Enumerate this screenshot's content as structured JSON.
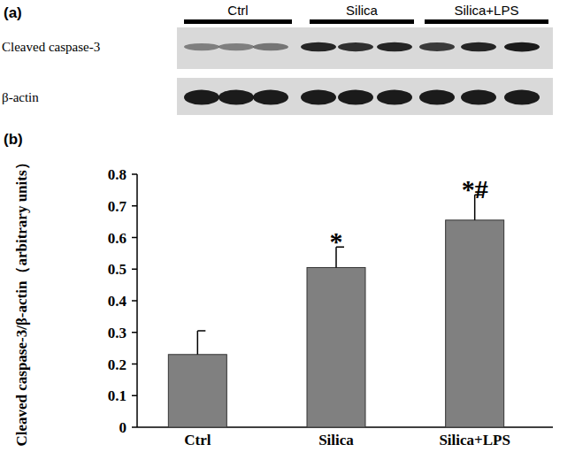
{
  "panel_a": {
    "panel_label": "(a)",
    "groups": [
      "Ctrl",
      "Silica",
      "Silica+LPS"
    ],
    "rows": [
      "Cleaved caspase-3",
      "β-actin"
    ]
  },
  "chart_data": {
    "type": "bar",
    "panel_label": "(b)",
    "y_label": "Cleaved caspase-3/β-actin（arbitrary units）",
    "categories": [
      "Ctrl",
      "Silica",
      "Silica+LPS"
    ],
    "values": [
      0.23,
      0.505,
      0.655
    ],
    "errors": [
      0.075,
      0.065,
      0.08
    ],
    "significance": [
      null,
      "*",
      "*#"
    ],
    "color": "#808080",
    "ylim": [
      0,
      0.8
    ],
    "yticks": [
      0,
      0.1,
      0.2,
      0.3,
      0.4,
      0.5,
      0.6,
      0.7,
      0.8
    ],
    "grid": false
  }
}
